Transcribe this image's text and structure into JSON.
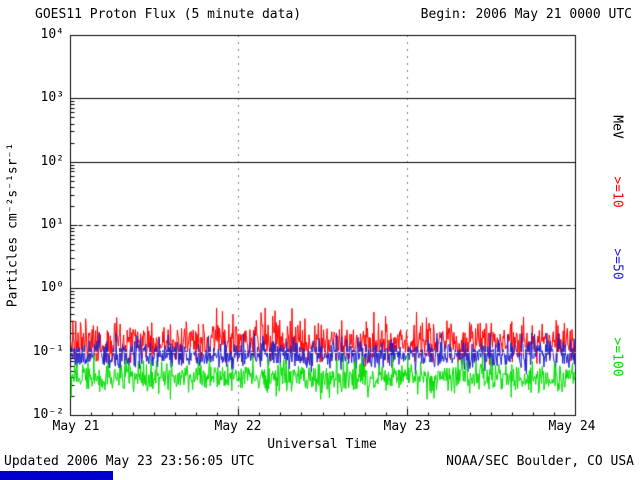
{
  "chart_data": {
    "type": "line",
    "title": "GOES11 Proton Flux (5 minute data)",
    "begin_label": "Begin: 2006 May 21 0000 UTC",
    "xlabel": "Universal Time",
    "ylabel": "Particles cm⁻²s⁻¹sr⁻¹",
    "right_axis_label": "MeV",
    "x_ticks": [
      "May 21",
      "May 22",
      "May 23",
      "May 24"
    ],
    "y_ticks": [
      "10⁴",
      "10³",
      "10²",
      "10¹",
      "10⁰",
      "10⁻¹",
      "10⁻²"
    ],
    "y_tick_exponents": [
      4,
      3,
      2,
      1,
      0,
      -1,
      -2
    ],
    "ylim": [
      0.01,
      10000
    ],
    "x_days": 3,
    "samples_per_plot": 864,
    "grid": {
      "solid_h_exponents": [
        3,
        2,
        0
      ],
      "dashed_h_exponents": [
        1
      ],
      "overlay_dashed_h_exponent": -1,
      "dotted_v_day_indices": [
        1,
        2
      ]
    },
    "series": [
      {
        "name": ">=10",
        "color": "#ff0000",
        "approx_log10_mean": -0.85,
        "approx_range": [
          0.06,
          0.5
        ]
      },
      {
        "name": ">=50",
        "color": "#2222cc",
        "approx_log10_mean": -1.05,
        "approx_range": [
          0.045,
          0.2
        ]
      },
      {
        "name": ">=100",
        "color": "#00dd00",
        "approx_log10_mean": -1.4,
        "approx_range": [
          0.018,
          0.09
        ]
      }
    ],
    "legend_position": "right-rotated"
  },
  "footer": {
    "updated": "Updated 2006 May 23 23:56:05 UTC",
    "credit": "NOAA/SEC Boulder, CO USA",
    "bar_color": "#0000cc"
  }
}
